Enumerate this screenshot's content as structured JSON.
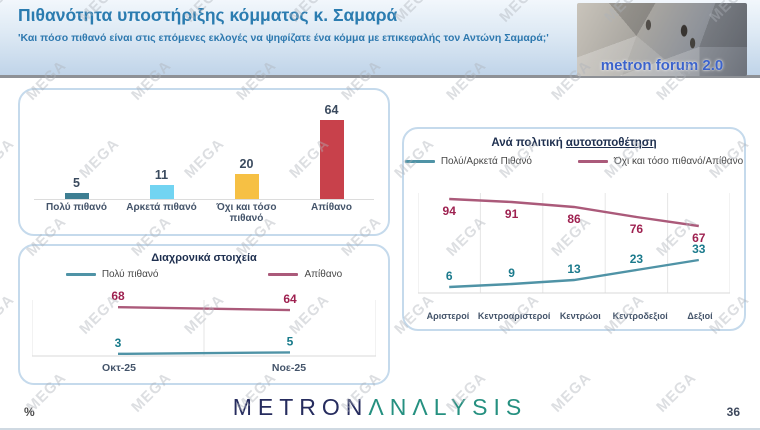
{
  "header": {
    "title": "Πιθανότητα υποστήριξης κόμματος κ. Σαμαρά",
    "subtitle": "'Και πόσο πιθανό είναι στις επόμενες εκλογές να ψηφίζατε ένα κόμμα με επικεφαλής τον Αντώνη Σαμαρά;'",
    "logo_text": "metron forum 2.0"
  },
  "watermark": {
    "text": "MEGA"
  },
  "footer": {
    "percent_label": "%",
    "page_number": "36",
    "logo_metron": "METRON",
    "logo_analysis": "ΛNΛLYSIS"
  },
  "chart_data": [
    {
      "id": "likelihood_bar",
      "type": "bar",
      "categories": [
        "Πολύ πιθανό",
        "Αρκετά πιθανό",
        "Όχι και τόσο πιθανό",
        "Απίθανο"
      ],
      "values": [
        5,
        11,
        20,
        64
      ],
      "colors": [
        "#3d7e92",
        "#72d4f2",
        "#f6c044",
        "#c8414b"
      ],
      "value_color": "#3a4a5e",
      "title": "",
      "xlabel": "",
      "ylabel": "",
      "ylim": [
        0,
        70
      ],
      "grid": false,
      "legend_position": "none"
    },
    {
      "id": "trend_line",
      "type": "line",
      "title": "Διαχρονικά στοιχεία",
      "categories": [
        "Οκτ-25",
        "Νοε-25"
      ],
      "series": [
        {
          "name": "Πολύ πιθανό",
          "values": [
            3,
            5
          ],
          "color": "#4f93a6",
          "label_color": "#177a8a",
          "label_dy": -7
        },
        {
          "name": "Απίθανο",
          "values": [
            68,
            64
          ],
          "color": "#ab5a7a",
          "label_color": "#9e2150",
          "label_dy": -7
        }
      ],
      "xlabel": "",
      "ylabel": "",
      "ylim": [
        0,
        78
      ],
      "grid": true,
      "legend_position": "top"
    },
    {
      "id": "selfplacement_line",
      "type": "line",
      "title_prefix": "Ανά πολιτική ",
      "title_underlined": "αυτοτοποθέτηση",
      "categories": [
        "Αριστεροί",
        "Κεντροαριστεροί",
        "Κεντρώοι",
        "Κεντροδεξιοί",
        "Δεξιοί"
      ],
      "series": [
        {
          "name": "Πολύ/Αρκετά Πιθανό",
          "values": [
            6,
            9,
            13,
            23,
            33
          ],
          "color": "#4f93a6",
          "label_color": "#1b7a8c",
          "label_dy": -7
        },
        {
          "name": "Όχι και τόσο πιθανό/Απίθανο",
          "values": [
            94,
            91,
            86,
            76,
            67
          ],
          "color": "#ab5a7a",
          "label_color": "#9e2150",
          "label_dy": 16
        }
      ],
      "xlabel": "",
      "ylabel": "",
      "ylim": [
        0,
        100
      ],
      "grid": true,
      "legend_position": "top"
    }
  ]
}
